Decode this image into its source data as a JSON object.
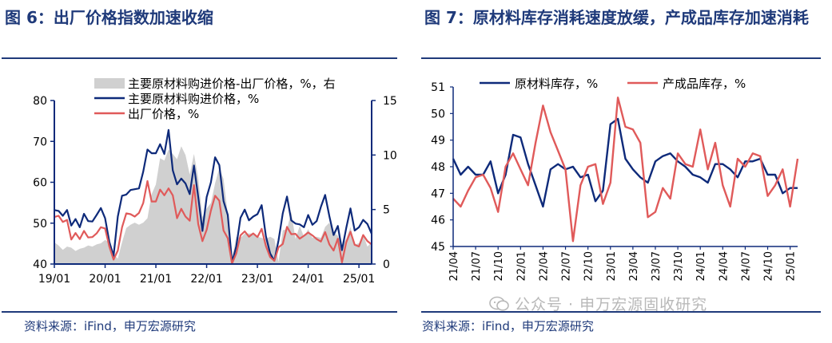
{
  "left_panel": {
    "title": "图 6：出厂价格指数加速收缩",
    "source": "资料来源：iFind，申万宏源研究"
  },
  "right_panel": {
    "title": "图 7：原材料库存消耗速度放缓，产成品库存加速消耗",
    "source": "资料来源：iFind，申万宏源研究"
  },
  "watermark": {
    "text": "公众号 · 申万宏源固收研究",
    "icon": "wechat-icon"
  },
  "colors": {
    "navy": "#0e2a7a",
    "red": "#e05a5a",
    "gray": "#d0d0d0",
    "title": "#1f3a7a"
  },
  "chart_data": [
    {
      "type": "line",
      "title": "",
      "x_tick_labels": [
        "19/01",
        "20/01",
        "21/01",
        "22/01",
        "23/01",
        "24/01",
        "25/01"
      ],
      "ylim_left": [
        40,
        80
      ],
      "yticks_left": [
        "40",
        "50",
        "60",
        "70",
        "80"
      ],
      "ylim_right": [
        0,
        15
      ],
      "yticks_right": [
        "0",
        "5",
        "10",
        "15"
      ],
      "grid": false,
      "legend_position": "top-left",
      "x": [
        "19/01",
        "19/02",
        "19/03",
        "19/04",
        "19/05",
        "19/06",
        "19/07",
        "19/08",
        "19/09",
        "19/10",
        "19/11",
        "19/12",
        "20/01",
        "20/02",
        "20/03",
        "20/04",
        "20/05",
        "20/06",
        "20/07",
        "20/08",
        "20/09",
        "20/10",
        "20/11",
        "20/12",
        "21/01",
        "21/02",
        "21/03",
        "21/04",
        "21/05",
        "21/06",
        "21/07",
        "21/08",
        "21/09",
        "21/10",
        "21/11",
        "21/12",
        "22/01",
        "22/02",
        "22/03",
        "22/04",
        "22/05",
        "22/06",
        "22/07",
        "22/08",
        "22/09",
        "22/10",
        "22/11",
        "22/12",
        "23/01",
        "23/02",
        "23/03",
        "23/04",
        "23/05",
        "23/06",
        "23/07",
        "23/08",
        "23/09",
        "23/10",
        "23/11",
        "23/12",
        "24/01",
        "24/02",
        "24/03",
        "24/04",
        "24/05",
        "24/06",
        "24/07",
        "24/08",
        "24/09",
        "24/10",
        "24/11",
        "24/12",
        "25/01",
        "25/02",
        "25/03",
        "25/04"
      ],
      "series": [
        {
          "name": "主要原材料购进价格-出厂价格，%，右",
          "axis": "right",
          "style": "area",
          "color": "#d0d0d0",
          "values": [
            2.0,
            1.7,
            1.3,
            1.6,
            1.5,
            1.2,
            1.4,
            1.5,
            1.7,
            1.6,
            1.8,
            1.9,
            2.2,
            2.0,
            0.9,
            0.5,
            2.0,
            3.3,
            3.6,
            3.8,
            3.6,
            3.8,
            4.2,
            6.4,
            7.3,
            9.7,
            9.5,
            10.5,
            10.1,
            9.6,
            10.8,
            10.0,
            8.2,
            10.1,
            7.9,
            4.3,
            5.1,
            5.6,
            7.4,
            8.8,
            7.8,
            4.6,
            0.4,
            2.5,
            2.4,
            2.8,
            2.8,
            2.8,
            2.5,
            2.4,
            2.3,
            2.5,
            2.3,
            0.2,
            3.1,
            3.2,
            4.8,
            2.3,
            3.5,
            2.5,
            3.2,
            2.4,
            2.5,
            2.4,
            3.4,
            3.8,
            2.9,
            2.6,
            1.7,
            2.3,
            3.4,
            1.8,
            1.9,
            2.7,
            1.6,
            2.0
          ]
        },
        {
          "name": "主要原材料购进价格，%",
          "axis": "left",
          "style": "line",
          "color": "#0e2a7a",
          "values": [
            53.2,
            53.0,
            51.8,
            53.2,
            49.4,
            51.0,
            49.0,
            52.3,
            50.5,
            50.4,
            52.0,
            53.7,
            51.2,
            45.4,
            42.0,
            51.6,
            56.7,
            57.0,
            58.1,
            58.3,
            58.5,
            62.6,
            68.0,
            67.1,
            67.1,
            69.3,
            66.9,
            72.8,
            62.9,
            59.5,
            60.9,
            59.7,
            57.1,
            64.1,
            56.4,
            48.1,
            56.4,
            60.0,
            66.1,
            64.2,
            55.4,
            52.0,
            40.4,
            44.3,
            51.3,
            53.3,
            50.7,
            51.6,
            52.2,
            54.4,
            46.8,
            42.6,
            40.8,
            45.8,
            52.4,
            56.5,
            50.7,
            49.9,
            49.7,
            49.0,
            52.0,
            49.6,
            50.5,
            54.0,
            56.9,
            51.7,
            47.1,
            49.3,
            43.4,
            48.8,
            53.6,
            48.2,
            49.0,
            50.8,
            49.8,
            47.4
          ]
        },
        {
          "name": "出厂价格，%",
          "axis": "left",
          "style": "line",
          "color": "#e05a5a",
          "values": [
            51.5,
            51.8,
            50.3,
            50.8,
            46.0,
            47.6,
            46.1,
            48.1,
            46.5,
            46.6,
            47.5,
            49.0,
            48.7,
            44.3,
            41.1,
            43.3,
            49.0,
            52.4,
            52.2,
            51.6,
            52.5,
            54.9,
            60.3,
            55.3,
            55.3,
            58.2,
            56.8,
            58.5,
            56.8,
            51.2,
            53.5,
            51.6,
            50.6,
            59.3,
            49.8,
            45.6,
            48.4,
            53.1,
            56.7,
            55.5,
            48.2,
            46.3,
            40.1,
            42.6,
            47.0,
            48.0,
            46.7,
            47.5,
            46.6,
            48.6,
            44.4,
            41.7,
            40.8,
            44.1,
            44.9,
            49.1,
            47.3,
            47.4,
            46.2,
            46.9,
            47.7,
            47.0,
            46.1,
            45.5,
            47.8,
            44.8,
            43.3,
            46.2,
            40.4,
            45.3,
            47.9,
            44.7,
            44.3,
            47.1,
            45.6,
            44.8
          ]
        }
      ]
    },
    {
      "type": "line",
      "title": "",
      "x_tick_labels": [
        "21/04",
        "21/07",
        "21/10",
        "22/01",
        "22/04",
        "22/07",
        "22/10",
        "23/01",
        "23/04",
        "23/07",
        "23/10",
        "24/01",
        "24/04",
        "24/07",
        "24/10",
        "25/01"
      ],
      "ylim": [
        45,
        51
      ],
      "yticks": [
        "45",
        "46",
        "47",
        "48",
        "49",
        "50",
        "51"
      ],
      "grid": false,
      "legend_position": "top",
      "x": [
        "21/04",
        "21/05",
        "21/06",
        "21/07",
        "21/08",
        "21/09",
        "21/10",
        "21/11",
        "21/12",
        "22/01",
        "22/02",
        "22/03",
        "22/04",
        "22/05",
        "22/06",
        "22/07",
        "22/08",
        "22/09",
        "22/10",
        "22/11",
        "22/12",
        "23/01",
        "23/02",
        "23/03",
        "23/04",
        "23/05",
        "23/06",
        "23/07",
        "23/08",
        "23/09",
        "23/10",
        "23/11",
        "23/12",
        "24/01",
        "24/02",
        "24/03",
        "24/04",
        "24/05",
        "24/06",
        "24/07",
        "24/08",
        "24/09",
        "24/10",
        "24/11",
        "24/12",
        "25/01",
        "25/02"
      ],
      "series": [
        {
          "name": "原材料库存，%",
          "color": "#0e2a7a",
          "values": [
            48.3,
            47.7,
            48.0,
            47.7,
            47.7,
            48.2,
            47.0,
            47.7,
            49.2,
            49.1,
            48.1,
            47.3,
            46.5,
            47.9,
            48.1,
            47.9,
            48.0,
            47.6,
            47.7,
            46.7,
            47.1,
            49.6,
            49.8,
            48.3,
            47.9,
            47.6,
            47.4,
            48.2,
            48.4,
            48.5,
            48.2,
            48.0,
            47.7,
            47.6,
            47.4,
            48.1,
            48.1,
            47.9,
            47.6,
            48.2,
            48.2,
            48.3,
            47.7,
            47.7,
            47.0,
            47.2,
            47.2
          ]
        },
        {
          "name": "产成品库存，%",
          "color": "#e05a5a",
          "values": [
            46.8,
            46.5,
            47.1,
            47.6,
            47.7,
            47.2,
            46.3,
            48.0,
            48.5,
            47.9,
            47.3,
            48.9,
            50.3,
            49.3,
            48.6,
            47.9,
            45.2,
            47.3,
            48.0,
            48.1,
            46.6,
            47.4,
            50.6,
            49.5,
            49.4,
            48.9,
            46.1,
            46.3,
            47.2,
            46.8,
            48.5,
            48.1,
            48.0,
            49.4,
            47.9,
            48.9,
            47.3,
            46.5,
            48.3,
            48.0,
            48.5,
            48.4,
            46.9,
            47.3,
            47.9,
            46.5,
            48.3
          ]
        }
      ]
    }
  ]
}
